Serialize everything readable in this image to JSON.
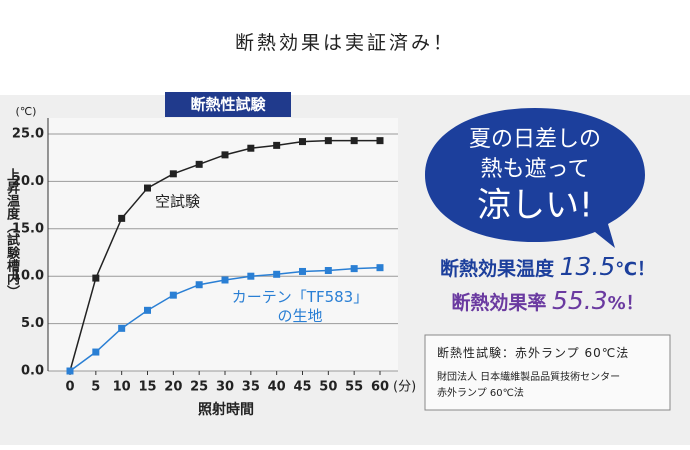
{
  "title": "断熱効果は実証済み！",
  "chart_data": {
    "type": "line",
    "badge": "断熱性試験",
    "x_label": "照射時間",
    "x_unit": "(分)",
    "y_label": "上昇温度（試験槽内）",
    "y_unit": "(℃)",
    "x": [
      0,
      5,
      10,
      15,
      20,
      25,
      30,
      35,
      40,
      45,
      50,
      55,
      60
    ],
    "series": [
      {
        "name": "空試験",
        "color": "#222222",
        "values": [
          0,
          9.8,
          16.1,
          19.3,
          20.8,
          21.8,
          22.8,
          23.5,
          23.8,
          24.2,
          24.3,
          24.3,
          24.3
        ]
      },
      {
        "name": "カーテン「TF583」の生地",
        "color": "#2a7fd4",
        "values": [
          0,
          2.0,
          4.5,
          6.4,
          8.0,
          9.1,
          9.6,
          10.0,
          10.2,
          10.5,
          10.6,
          10.8,
          10.9
        ]
      }
    ],
    "xlim": [
      0,
      60
    ],
    "xticks": [
      0,
      5,
      10,
      15,
      20,
      25,
      30,
      35,
      40,
      45,
      50,
      55,
      60
    ],
    "ylim": [
      0,
      25
    ],
    "yticks": [
      {
        "value": 0,
        "label": "0.0"
      },
      {
        "value": 5,
        "label": "5.0"
      },
      {
        "value": 10,
        "label": "10.0"
      },
      {
        "value": 15,
        "label": "15.0"
      },
      {
        "value": 20,
        "label": "20.0"
      },
      {
        "value": 25,
        "label": "25.0"
      }
    ],
    "grid": true
  },
  "bubble": {
    "lines": [
      "夏の日差しの",
      "熱も遮って",
      "涼しい!"
    ]
  },
  "results": [
    {
      "label": "断熱効果温度",
      "value": "13.5",
      "unit": "℃！"
    },
    {
      "label": "断熱効果率",
      "value": "55.3",
      "unit": "%！"
    }
  ],
  "note": {
    "method": "断熱性試験：赤外ランプ 60℃法",
    "org": "財団法人 日本繊維製品品質技術センター",
    "method2": "赤外ランプ 60℃法"
  }
}
